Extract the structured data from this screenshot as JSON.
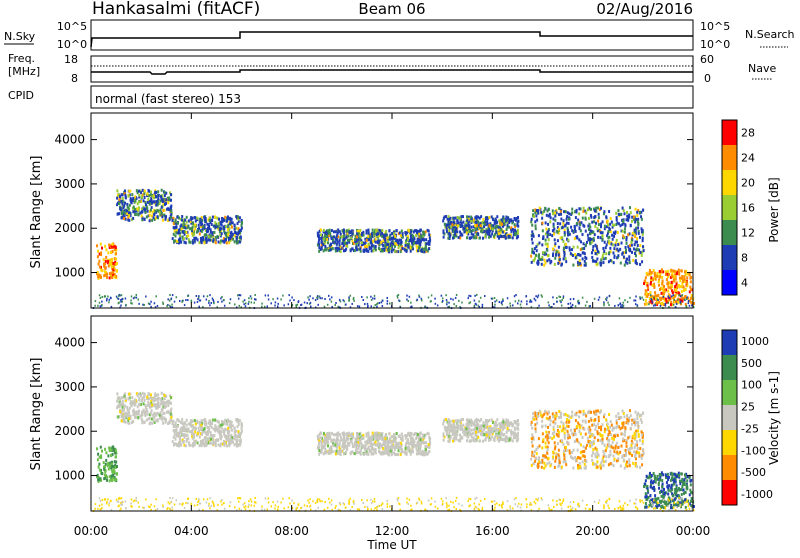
{
  "header": {
    "station": "Hankasalmi (fitACF)",
    "beam": "Beam 06",
    "date": "02/Aug/2016"
  },
  "nsky_panel": {
    "label": "N.Sky",
    "ticks": [
      "10^5",
      "10^0"
    ],
    "right_label": "N.Search",
    "right_ticks": [
      "10^5",
      "10^0"
    ]
  },
  "freq_panel": {
    "label_line1": "Freq.",
    "label_line2": "[MHz]",
    "ticks": [
      "18",
      "8"
    ],
    "right_label": "Nave",
    "right_ticks": [
      "60",
      "0"
    ]
  },
  "cpid": {
    "label": "CPID",
    "value": "normal (fast stereo) 153"
  },
  "chart_data": [
    {
      "type": "heatmap",
      "title": "Power",
      "ylabel": "Slant Range [km]",
      "ylim": [
        200,
        4600
      ],
      "yticks": [
        "4000",
        "3000",
        "2000",
        "1000"
      ],
      "xlim_hours": [
        0,
        24
      ],
      "colorbar_label": "Power [dB]",
      "colorbar_ticks": [
        "28",
        "24",
        "20",
        "16",
        "12",
        "8",
        "4"
      ],
      "colorbar_colors": [
        "#ff0000",
        "#ff8c00",
        "#ffd700",
        "#9acd32",
        "#3c8c50",
        "#1e3cb4",
        "#0000ff"
      ],
      "echo_regions": [
        {
          "t0": 0.2,
          "t1": 1.0,
          "r0": 900,
          "r1": 1700
        },
        {
          "t0": 1.0,
          "t1": 3.2,
          "r0": 2200,
          "r1": 2900
        },
        {
          "t0": 3.2,
          "t1": 6.0,
          "r0": 1700,
          "r1": 2300
        },
        {
          "t0": 9.0,
          "t1": 13.5,
          "r0": 1500,
          "r1": 2000
        },
        {
          "t0": 14.0,
          "t1": 17.0,
          "r0": 1800,
          "r1": 2300
        },
        {
          "t0": 17.5,
          "t1": 22.0,
          "r0": 1200,
          "r1": 2500
        },
        {
          "t0": 22.0,
          "t1": 24.0,
          "r0": 300,
          "r1": 1100
        }
      ]
    },
    {
      "type": "heatmap",
      "title": "Velocity",
      "ylabel": "Slant Range [km]",
      "ylim": [
        200,
        4600
      ],
      "yticks": [
        "4000",
        "3000",
        "2000",
        "1000"
      ],
      "xlim_hours": [
        0,
        24
      ],
      "colorbar_label": "Velocity [m s-1]",
      "colorbar_ticks": [
        "1000",
        "500",
        "100",
        "25",
        "-25",
        "-100",
        "-500",
        "-1000"
      ],
      "colorbar_colors": [
        "#1e3cb4",
        "#3c8c50",
        "#6cc04a",
        "#c8c8c0",
        "#ffd700",
        "#ff8c00",
        "#ff0000"
      ]
    }
  ],
  "xaxis": {
    "ticks": [
      "00:00",
      "04:00",
      "08:00",
      "12:00",
      "16:00",
      "20:00",
      "00:00"
    ],
    "label": "Time UT"
  }
}
